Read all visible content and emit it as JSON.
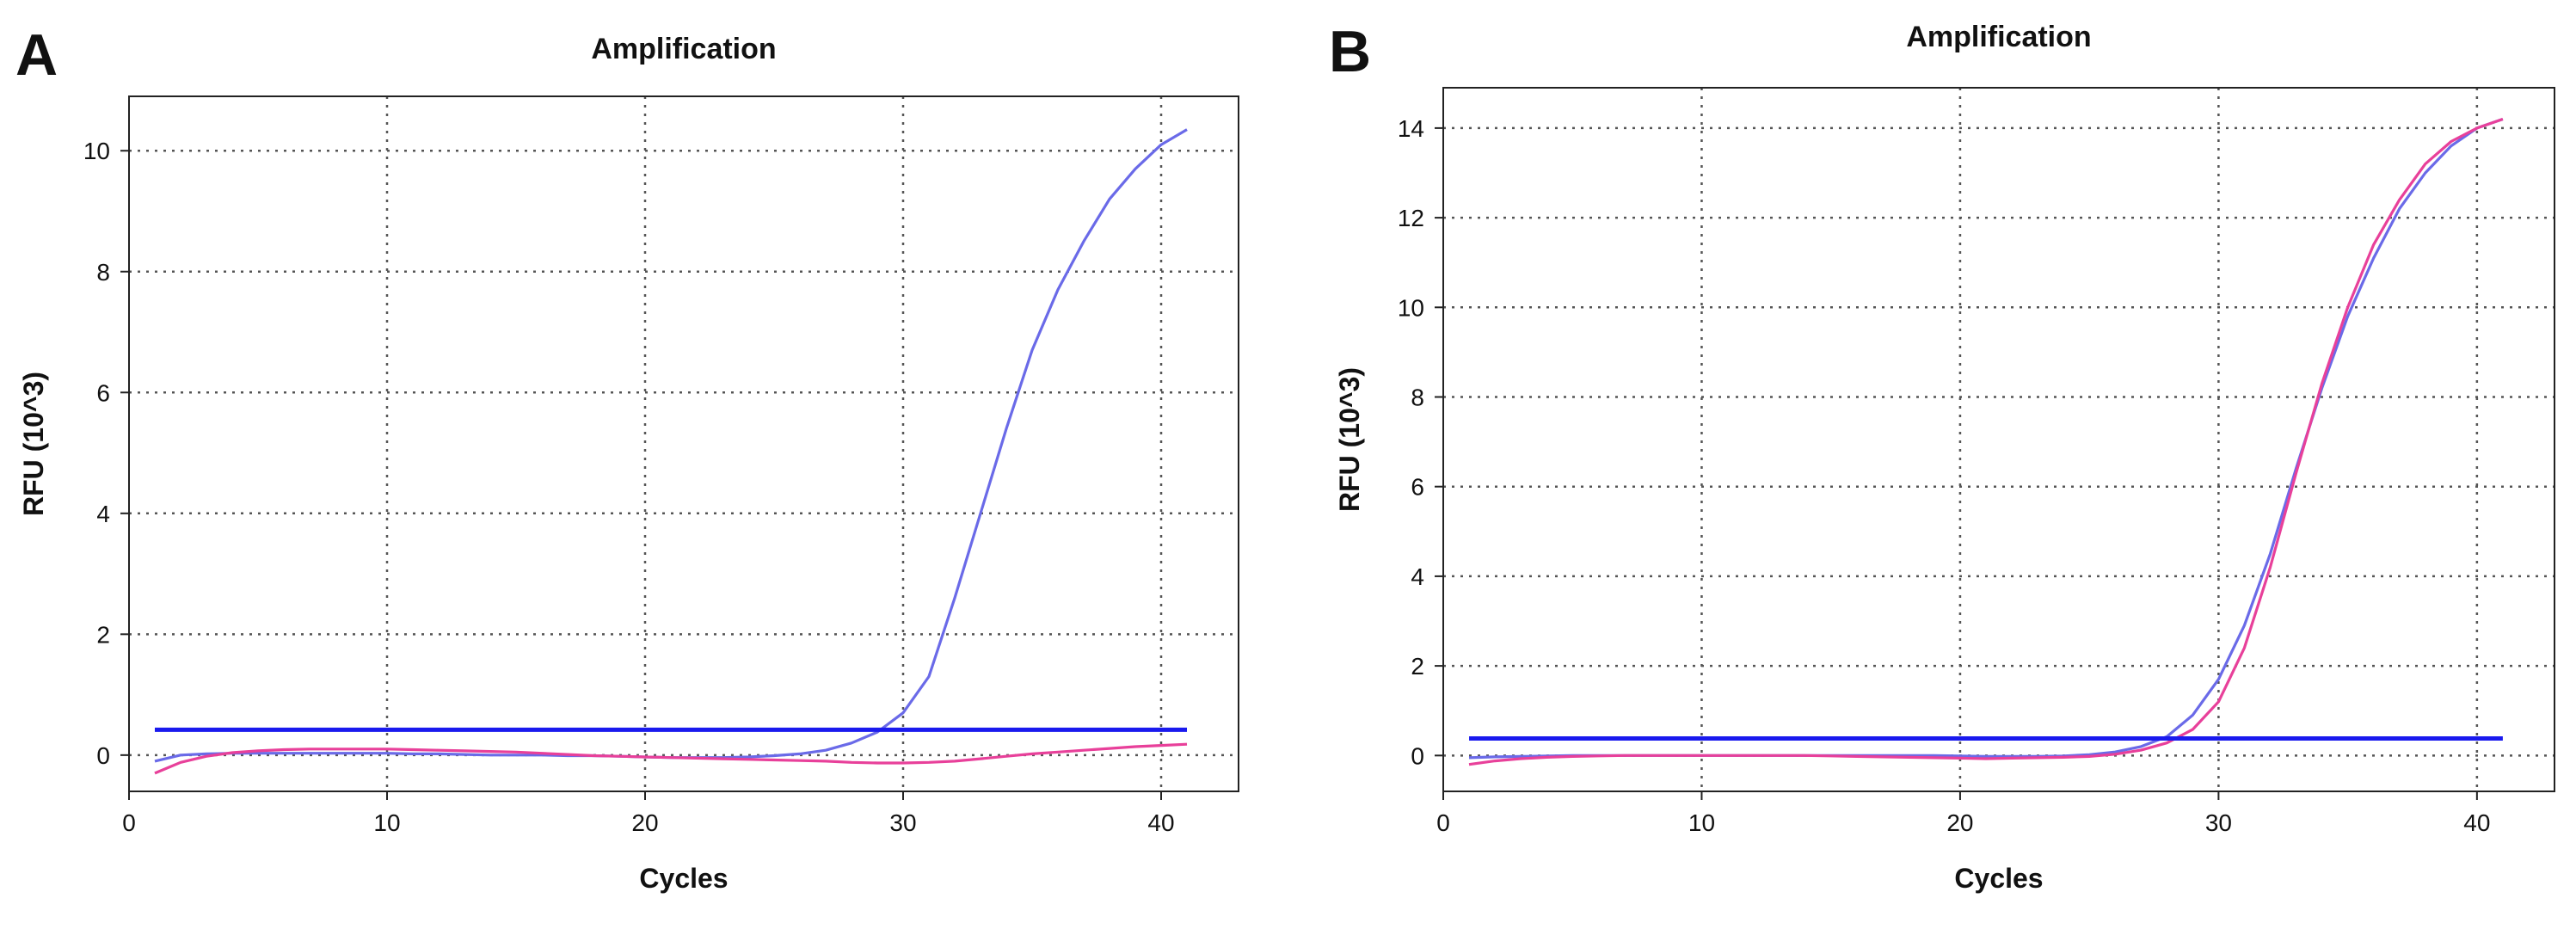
{
  "panels": [
    {
      "letter": "A",
      "chart_index": 0
    },
    {
      "letter": "B",
      "chart_index": 1
    }
  ],
  "chart_data": [
    {
      "type": "line",
      "title": "Amplification",
      "xlabel": "Cycles",
      "ylabel": "RFU (10^3)",
      "xlim": [
        0,
        43
      ],
      "ylim": [
        -0.6,
        10.9
      ],
      "xticks": [
        0,
        10,
        20,
        30,
        40
      ],
      "yticks": [
        0,
        2,
        4,
        6,
        8,
        10
      ],
      "grid": true,
      "threshold": {
        "value": 0.42,
        "x": [
          1,
          41
        ],
        "color": "#1a1aee"
      },
      "series": [
        {
          "name": "blue",
          "color": "#6a6ae8",
          "x": [
            1,
            2,
            3,
            4,
            5,
            6,
            7,
            8,
            9,
            10,
            11,
            12,
            13,
            14,
            15,
            16,
            17,
            18,
            19,
            20,
            21,
            22,
            23,
            24,
            25,
            26,
            27,
            28,
            29,
            30,
            31,
            32,
            33,
            34,
            35,
            36,
            37,
            38,
            39,
            40,
            41
          ],
          "y": [
            -0.1,
            0.0,
            0.02,
            0.03,
            0.03,
            0.03,
            0.03,
            0.03,
            0.03,
            0.03,
            0.02,
            0.02,
            0.01,
            0.0,
            0.0,
            0.0,
            -0.01,
            -0.01,
            -0.02,
            -0.03,
            -0.04,
            -0.04,
            -0.04,
            -0.03,
            -0.01,
            0.02,
            0.08,
            0.2,
            0.38,
            0.7,
            1.3,
            2.6,
            4.0,
            5.4,
            6.7,
            7.7,
            8.5,
            9.2,
            9.7,
            10.1,
            10.35
          ]
        },
        {
          "name": "magenta",
          "color": "#e8409a",
          "x": [
            1,
            2,
            3,
            4,
            5,
            6,
            7,
            8,
            9,
            10,
            11,
            12,
            13,
            14,
            15,
            16,
            17,
            18,
            19,
            20,
            21,
            22,
            23,
            24,
            25,
            26,
            27,
            28,
            29,
            30,
            31,
            32,
            33,
            34,
            35,
            36,
            37,
            38,
            39,
            40,
            41
          ],
          "y": [
            -0.3,
            -0.12,
            -0.02,
            0.04,
            0.07,
            0.09,
            0.1,
            0.1,
            0.1,
            0.1,
            0.09,
            0.08,
            0.07,
            0.06,
            0.05,
            0.03,
            0.01,
            -0.01,
            -0.02,
            -0.03,
            -0.04,
            -0.05,
            -0.06,
            -0.07,
            -0.08,
            -0.09,
            -0.1,
            -0.12,
            -0.13,
            -0.13,
            -0.12,
            -0.1,
            -0.06,
            -0.02,
            0.02,
            0.05,
            0.08,
            0.11,
            0.14,
            0.16,
            0.18
          ]
        }
      ]
    },
    {
      "type": "line",
      "title": "Amplification",
      "xlabel": "Cycles",
      "ylabel": "RFU (10^3)",
      "xlim": [
        0,
        43
      ],
      "ylim": [
        -0.8,
        14.9
      ],
      "xticks": [
        0,
        10,
        20,
        30,
        40
      ],
      "yticks": [
        0,
        2,
        4,
        6,
        8,
        10,
        12,
        14
      ],
      "grid": true,
      "threshold": {
        "value": 0.38,
        "x": [
          1,
          41
        ],
        "color": "#1a1aee"
      },
      "series": [
        {
          "name": "blue",
          "color": "#6a6ae8",
          "x": [
            1,
            2,
            3,
            4,
            5,
            6,
            7,
            8,
            9,
            10,
            11,
            12,
            13,
            14,
            15,
            16,
            17,
            18,
            19,
            20,
            21,
            22,
            23,
            24,
            25,
            26,
            27,
            28,
            29,
            30,
            31,
            32,
            33,
            34,
            35,
            36,
            37,
            38,
            39,
            40,
            41
          ],
          "y": [
            -0.05,
            -0.03,
            -0.02,
            -0.01,
            0.0,
            0.0,
            0.0,
            0.0,
            0.0,
            0.0,
            0.0,
            0.0,
            0.0,
            0.0,
            0.0,
            0.0,
            0.0,
            0.0,
            0.0,
            -0.01,
            -0.02,
            -0.02,
            -0.02,
            -0.01,
            0.02,
            0.08,
            0.2,
            0.42,
            0.9,
            1.7,
            2.9,
            4.5,
            6.4,
            8.2,
            9.8,
            11.1,
            12.2,
            13.0,
            13.6,
            14.0,
            14.2
          ]
        },
        {
          "name": "magenta",
          "color": "#e8409a",
          "x": [
            1,
            2,
            3,
            4,
            5,
            6,
            7,
            8,
            9,
            10,
            11,
            12,
            13,
            14,
            15,
            16,
            17,
            18,
            19,
            20,
            21,
            22,
            23,
            24,
            25,
            26,
            27,
            28,
            29,
            30,
            31,
            32,
            33,
            34,
            35,
            36,
            37,
            38,
            39,
            40,
            41
          ],
          "y": [
            -0.2,
            -0.12,
            -0.07,
            -0.04,
            -0.02,
            -0.01,
            0.0,
            0.0,
            0.0,
            0.0,
            0.0,
            0.0,
            0.0,
            0.0,
            -0.01,
            -0.02,
            -0.03,
            -0.04,
            -0.05,
            -0.06,
            -0.07,
            -0.06,
            -0.05,
            -0.04,
            -0.02,
            0.03,
            0.12,
            0.28,
            0.58,
            1.2,
            2.4,
            4.2,
            6.3,
            8.3,
            10.0,
            11.4,
            12.4,
            13.2,
            13.7,
            14.0,
            14.2
          ]
        }
      ]
    }
  ]
}
